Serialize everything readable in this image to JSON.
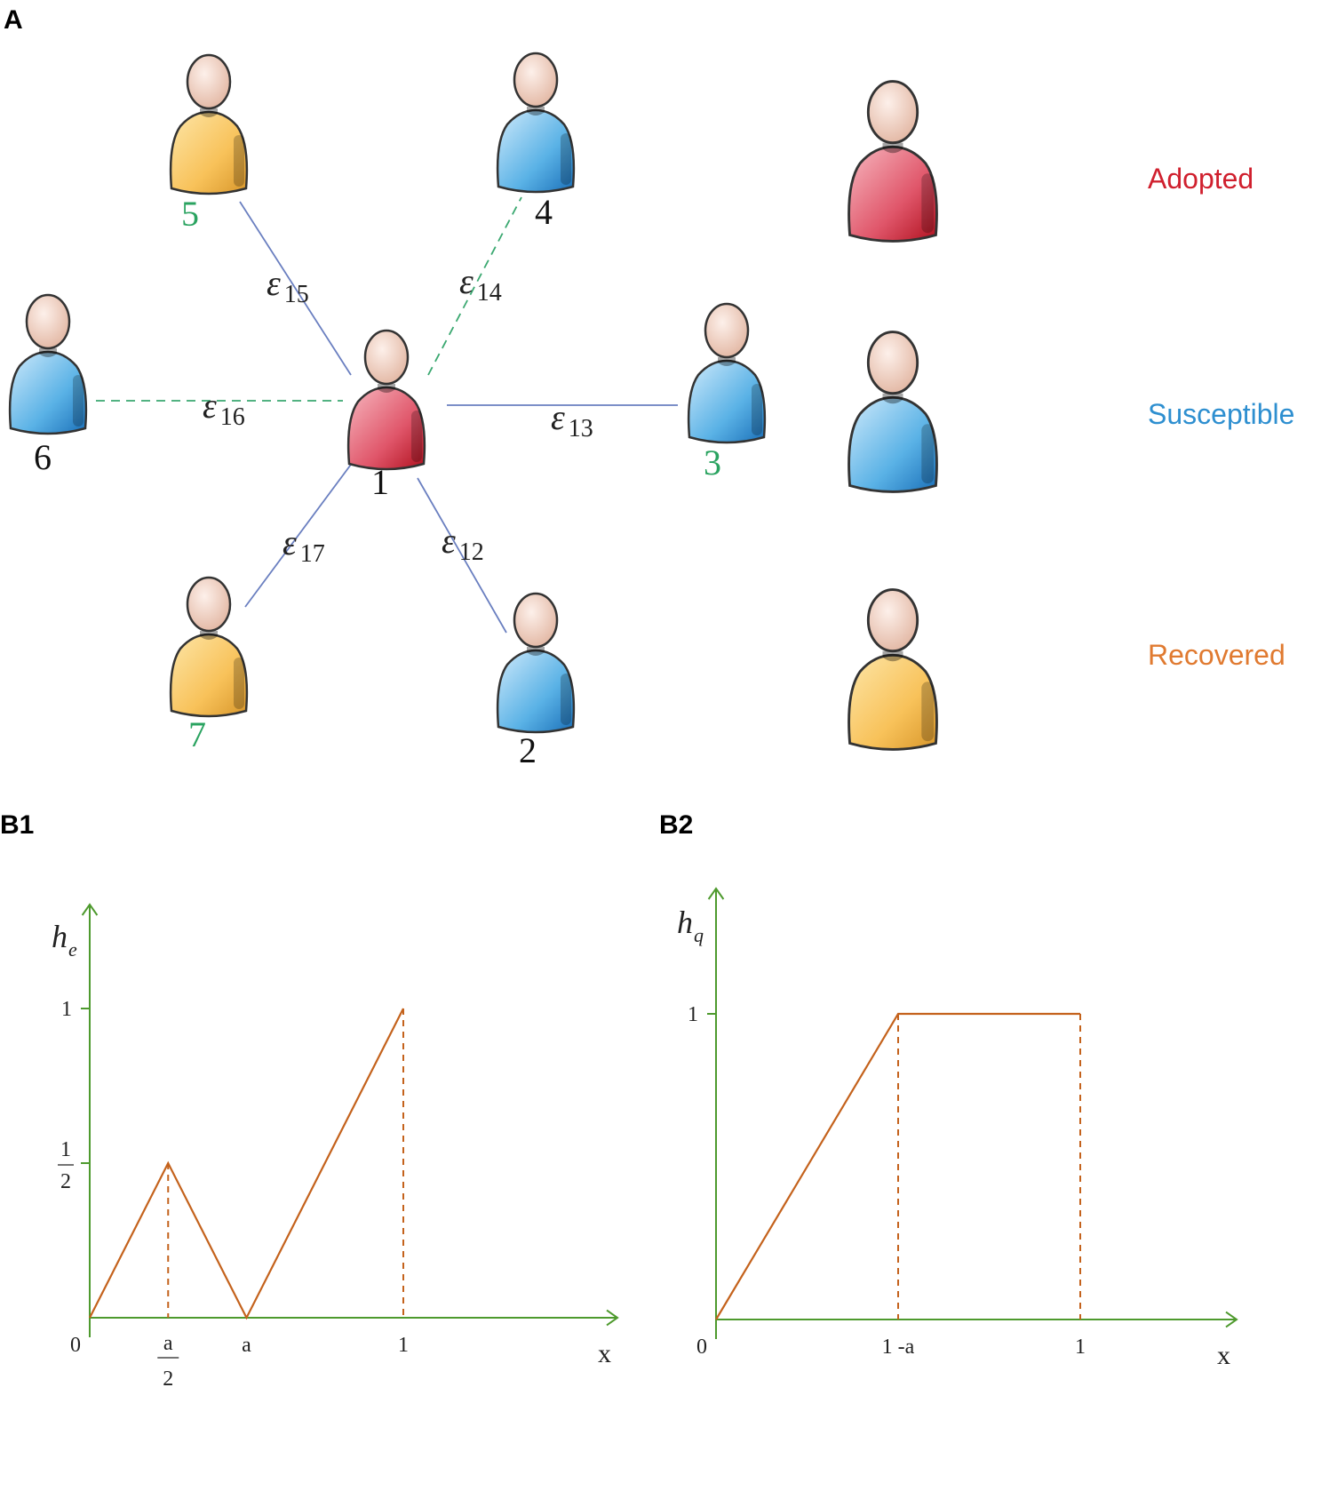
{
  "panels": {
    "a_label": "A",
    "b1_label": "B1",
    "b2_label": "B2"
  },
  "colors": {
    "adopted": "#d0202e",
    "susceptible": "#2e8fd0",
    "recovered": "#e07a30",
    "green_label": "#2aa360",
    "axis": "#4e9a2e",
    "curve": "#c4621c",
    "edge_solid": "#6a7fc0",
    "edge_dashed": "#3aa870"
  },
  "network": {
    "nodes": [
      {
        "id": "1",
        "state": "adopted",
        "label_color": "black"
      },
      {
        "id": "2",
        "state": "susceptible",
        "label_color": "black"
      },
      {
        "id": "3",
        "state": "susceptible",
        "label_color": "green"
      },
      {
        "id": "4",
        "state": "susceptible",
        "label_color": "black"
      },
      {
        "id": "5",
        "state": "recovered",
        "label_color": "green"
      },
      {
        "id": "6",
        "state": "susceptible",
        "label_color": "black"
      },
      {
        "id": "7",
        "state": "recovered",
        "label_color": "green"
      }
    ],
    "edges": [
      {
        "from": "1",
        "to": "2",
        "label": "ε",
        "sub": "12",
        "style": "solid"
      },
      {
        "from": "1",
        "to": "3",
        "label": "ε",
        "sub": "13",
        "style": "solid"
      },
      {
        "from": "1",
        "to": "4",
        "label": "ε",
        "sub": "14",
        "style": "dashed"
      },
      {
        "from": "1",
        "to": "5",
        "label": "ε",
        "sub": "15",
        "style": "solid"
      },
      {
        "from": "1",
        "to": "6",
        "label": "ε",
        "sub": "16",
        "style": "dashed"
      },
      {
        "from": "1",
        "to": "7",
        "label": "ε",
        "sub": "17",
        "style": "solid"
      }
    ]
  },
  "legend": [
    {
      "label": "Adopted",
      "state": "adopted"
    },
    {
      "label": "Susceptible",
      "state": "susceptible"
    },
    {
      "label": "Recovered",
      "state": "recovered"
    }
  ],
  "chart_data": [
    {
      "type": "line",
      "panel": "B1",
      "y_axis_label": "h",
      "y_axis_subscript": "e",
      "x_axis_label": "x",
      "x_ticks": [
        {
          "label": "0",
          "x": 0
        },
        {
          "label": "a/2",
          "x": 0.25
        },
        {
          "label": "a",
          "x": 0.5
        },
        {
          "label": "1",
          "x": 1
        }
      ],
      "y_ticks": [
        {
          "label": "1/2",
          "y": 0.5
        },
        {
          "label": "1",
          "y": 1
        }
      ],
      "points": [
        [
          0,
          0
        ],
        [
          0.25,
          0.5
        ],
        [
          0.5,
          0
        ],
        [
          1,
          1
        ]
      ],
      "dashed_guides": [
        0.25,
        1
      ]
    },
    {
      "type": "line",
      "panel": "B2",
      "y_axis_label": "h",
      "y_axis_subscript": "q",
      "x_axis_label": "x",
      "x_ticks": [
        {
          "label": "0",
          "x": 0
        },
        {
          "label": "1 -a",
          "x": 0.5
        },
        {
          "label": "1",
          "x": 1
        }
      ],
      "y_ticks": [
        {
          "label": "1",
          "y": 1
        }
      ],
      "points": [
        [
          0,
          0
        ],
        [
          0.5,
          1
        ],
        [
          1,
          1
        ]
      ],
      "dashed_guides": [
        0.5,
        1
      ]
    }
  ]
}
